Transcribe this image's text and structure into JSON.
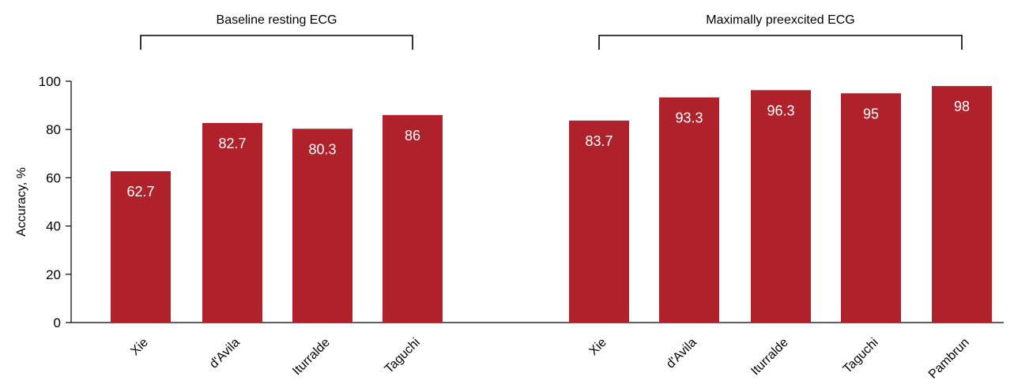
{
  "chart_data": {
    "type": "bar",
    "ylabel": "Accuracy, %",
    "ylim": [
      0,
      100
    ],
    "yticks": [
      0,
      20,
      40,
      60,
      80,
      100
    ],
    "grid": false,
    "bar_color": "#b0222b",
    "groups": [
      {
        "name": "Baseline resting ECG",
        "categories": [
          "Xie",
          "d'Avila",
          "Iturralde",
          "Taguchi"
        ],
        "values": [
          62.7,
          82.7,
          80.3,
          86
        ],
        "value_labels": [
          "62.7",
          "82.7",
          "80.3",
          "86"
        ]
      },
      {
        "name": "Maximally preexcited ECG",
        "categories": [
          "Xie",
          "d'Avila",
          "Iturralde",
          "Taguchi",
          "Pambrun"
        ],
        "values": [
          83.7,
          93.3,
          96.3,
          95,
          98
        ],
        "value_labels": [
          "83.7",
          "93.3",
          "96.3",
          "95",
          "98"
        ]
      }
    ]
  }
}
